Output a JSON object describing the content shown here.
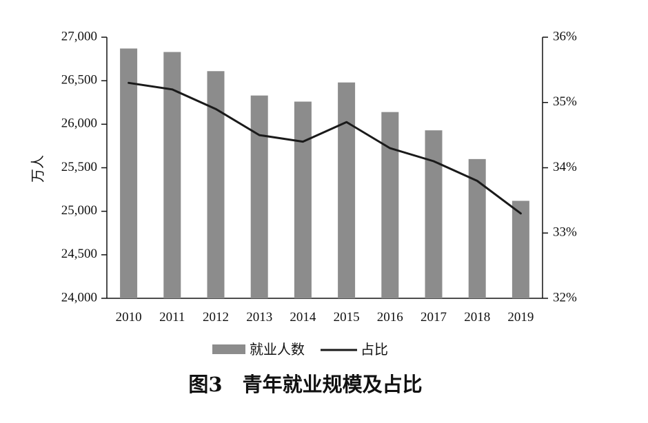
{
  "chart_data": {
    "type": "bar",
    "caption": "图3　青年就业规模及占比",
    "categories": [
      "2010",
      "2011",
      "2012",
      "2013",
      "2014",
      "2015",
      "2016",
      "2017",
      "2018",
      "2019"
    ],
    "series": [
      {
        "name": "就业人数",
        "type": "bar",
        "axis": "left",
        "color": "#8c8c8c",
        "values": [
          26870,
          26830,
          26610,
          26330,
          26260,
          26480,
          26140,
          25930,
          25600,
          25120
        ]
      },
      {
        "name": "占比",
        "type": "line",
        "axis": "right",
        "color": "#1a1a1a",
        "values": [
          35.3,
          35.2,
          34.9,
          34.5,
          34.4,
          34.7,
          34.3,
          34.1,
          33.8,
          33.3
        ]
      }
    ],
    "ylabel": "万人",
    "ylim": [
      24000,
      27000
    ],
    "yticks": [
      "24,000",
      "24,500",
      "25,000",
      "25,500",
      "26,000",
      "26,500",
      "27,000"
    ],
    "y2lim": [
      32,
      36
    ],
    "y2ticks": [
      "32%",
      "33%",
      "34%",
      "35%",
      "36%"
    ],
    "grid": false,
    "legend_position": "bottom"
  }
}
